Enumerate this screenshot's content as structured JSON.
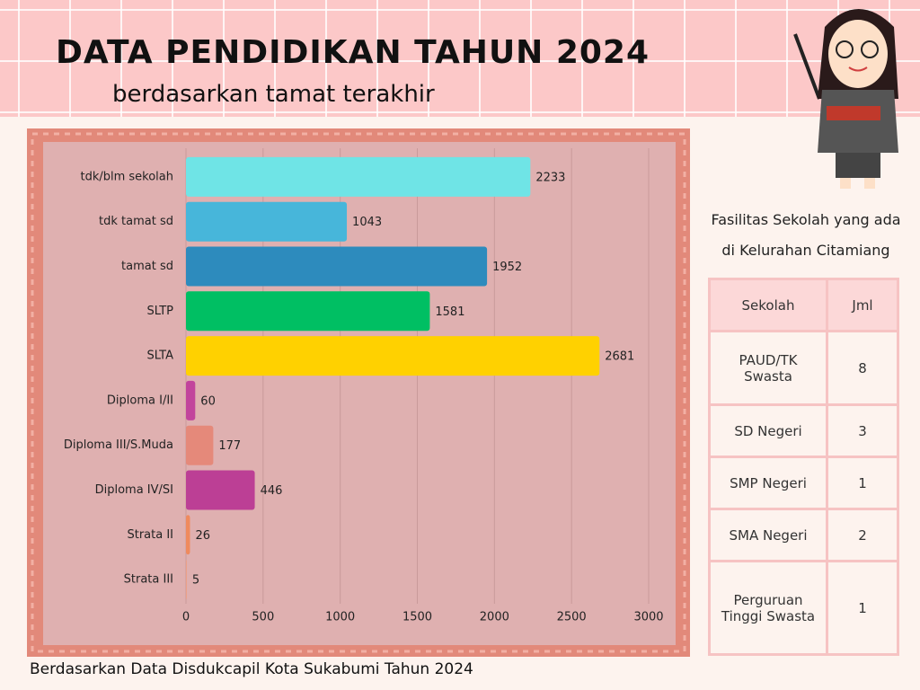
{
  "title": "DATA PENDIDIKAN TAHUN 2024",
  "subtitle": "berdasarkan tamat terakhir",
  "chart_data": {
    "type": "barh",
    "categories": [
      "tdk/blm sekolah",
      "tdk tamat sd",
      "tamat sd",
      "SLTP",
      "SLTA",
      "Diploma I/II",
      "Diploma III/S.Muda",
      "Diploma IV/SI",
      "Strata II",
      "Strata III"
    ],
    "values": [
      2233,
      1043,
      1952,
      1581,
      2681,
      60,
      177,
      446,
      26,
      5
    ],
    "colors": [
      "#6fe4e6",
      "#47b6da",
      "#2d8bbd",
      "#00bf63",
      "#ffd100",
      "#c2449c",
      "#e5897a",
      "#bc3f95",
      "#ef8a5e",
      "#ee9e82"
    ],
    "xlim": [
      0,
      3000
    ],
    "xticks": [
      0,
      500,
      1000,
      1500,
      2000,
      2500,
      3000
    ],
    "grid": true
  },
  "table": {
    "caption": [
      "Fasilitas Sekolah yang ada",
      "di Kelurahan Citamiang"
    ],
    "header": [
      "Sekolah",
      "Jml"
    ],
    "rows": [
      [
        "PAUD/TK Swasta",
        8
      ],
      [
        "SD Negeri",
        3
      ],
      [
        "SMP Negeri",
        1
      ],
      [
        "SMA Negeri",
        2
      ],
      [
        "Perguruan Tinggi Swasta",
        1
      ]
    ]
  },
  "footer": "Berdasarkan Data Disdukcapil Kota Sukabumi Tahun 2024"
}
